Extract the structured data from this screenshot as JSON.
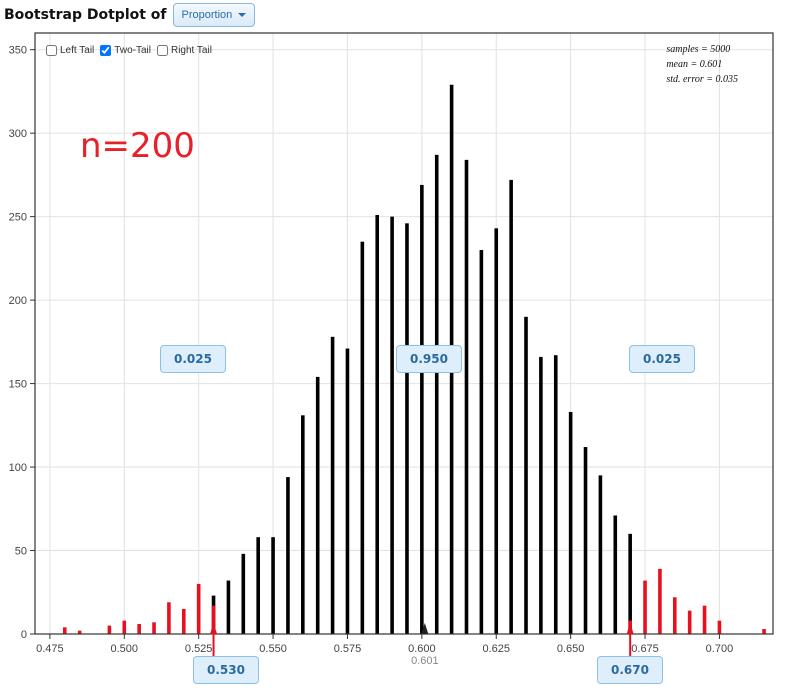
{
  "header": {
    "title": "Bootstrap Dotplot of",
    "dropdown_value": "Proportion"
  },
  "tail_options": [
    {
      "label": "Left Tail",
      "checked": false
    },
    {
      "label": "Two-Tail",
      "checked": true
    },
    {
      "label": "Right Tail",
      "checked": false
    }
  ],
  "stats": {
    "samples": "samples = 5000",
    "mean": "mean = 0.601",
    "std_error": "std. error = 0.035"
  },
  "sample_size_label": "n=200",
  "tail_proportions": {
    "left": "0.025",
    "middle": "0.950",
    "right": "0.025"
  },
  "cutoffs": {
    "lower": "0.530",
    "upper": "0.670",
    "mean_tick": "0.601"
  },
  "colors": {
    "inside": "#000000",
    "tail": "#e8101e",
    "label_text": "#e8202a",
    "box_fill": "#deeefb",
    "box_border": "#8cc0e8",
    "box_text": "#2a6aa0"
  },
  "chart_data": {
    "type": "bar",
    "xlim": [
      0.47,
      0.718
    ],
    "ylim": [
      0,
      360
    ],
    "x_ticks": [
      "0.475",
      "0.500",
      "0.525",
      "0.550",
      "0.575",
      "0.600",
      "0.625",
      "0.650",
      "0.675",
      "0.700"
    ],
    "y_ticks": [
      "0",
      "50",
      "100",
      "150",
      "200",
      "250",
      "300",
      "350"
    ],
    "grid": true,
    "lower_cutoff": 0.53,
    "upper_cutoff": 0.67,
    "x": [
      0.48,
      0.485,
      0.495,
      0.5,
      0.505,
      0.51,
      0.515,
      0.52,
      0.525,
      0.53,
      0.535,
      0.54,
      0.545,
      0.55,
      0.555,
      0.56,
      0.565,
      0.57,
      0.575,
      0.58,
      0.585,
      0.59,
      0.595,
      0.6,
      0.605,
      0.61,
      0.615,
      0.62,
      0.625,
      0.63,
      0.635,
      0.64,
      0.645,
      0.65,
      0.655,
      0.66,
      0.665,
      0.67,
      0.675,
      0.68,
      0.685,
      0.69,
      0.695,
      0.7,
      0.715
    ],
    "y": [
      4,
      2,
      5,
      8,
      6,
      7,
      19,
      15,
      30,
      23,
      32,
      48,
      58,
      58,
      94,
      131,
      154,
      178,
      171,
      235,
      251,
      250,
      246,
      269,
      287,
      329,
      284,
      230,
      243,
      272,
      190,
      166,
      167,
      133,
      112,
      95,
      71,
      60,
      32,
      39,
      22,
      14,
      17,
      8,
      3
    ],
    "tail_counts_at_cutoff": [
      {
        "x": 0.53,
        "count": 17
      },
      {
        "x": 0.67,
        "count": 8
      }
    ]
  }
}
